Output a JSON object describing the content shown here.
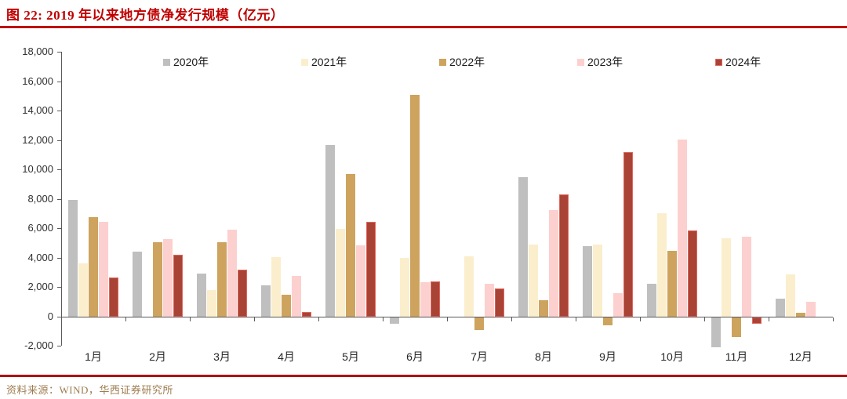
{
  "figure": {
    "title": "图 22: 2019 年以来地方债净发行规模（亿元）",
    "source": "资料来源：WIND，华西证券研究所"
  },
  "colors": {
    "title": "#c00000",
    "title_rule": "#c00000",
    "source_rule": "#b01212",
    "source_text": "#9e7c50",
    "axis": "#595959",
    "tick_label": "#303030",
    "month_label": "#262626",
    "legend_label": "#1a1a1a"
  },
  "chart_data": {
    "type": "bar",
    "title": "2019 年以来地方债净发行规模（亿元）",
    "unit": "亿元",
    "xlabel": "",
    "ylabel": "",
    "ylim": [
      -2000,
      18000
    ],
    "ytick_step": 2000,
    "grid": false,
    "legend_position": "top-inside",
    "categories": [
      "1月",
      "2月",
      "3月",
      "4月",
      "5月",
      "6月",
      "7月",
      "8月",
      "9月",
      "10月",
      "11月",
      "12月"
    ],
    "series": [
      {
        "name": "2020年",
        "color": "#bfbfbf",
        "values": [
          7950,
          4400,
          2950,
          2150,
          11700,
          -400,
          0,
          9500,
          4800,
          2250,
          -2050,
          1200
        ]
      },
      {
        "name": "2021年",
        "color": "#fbeecd",
        "values": [
          3600,
          0,
          1800,
          4050,
          5950,
          4000,
          4100,
          4900,
          4900,
          7050,
          5350,
          2900
        ]
      },
      {
        "name": "2022年",
        "color": "#cda35e",
        "values": [
          6750,
          5050,
          5050,
          1500,
          9700,
          15100,
          -850,
          1100,
          -550,
          4500,
          -1350,
          250
        ]
      },
      {
        "name": "2023年",
        "color": "#fcd0ce",
        "values": [
          6450,
          5300,
          5900,
          2750,
          4850,
          2350,
          2250,
          7250,
          1600,
          12050,
          5450,
          1000
        ]
      },
      {
        "name": "2024年",
        "color": "#a84335",
        "edge": "#e2655b",
        "values": [
          2650,
          4200,
          3200,
          300,
          6450,
          2400,
          1900,
          8300,
          11200,
          5850,
          -400,
          null
        ]
      }
    ]
  }
}
